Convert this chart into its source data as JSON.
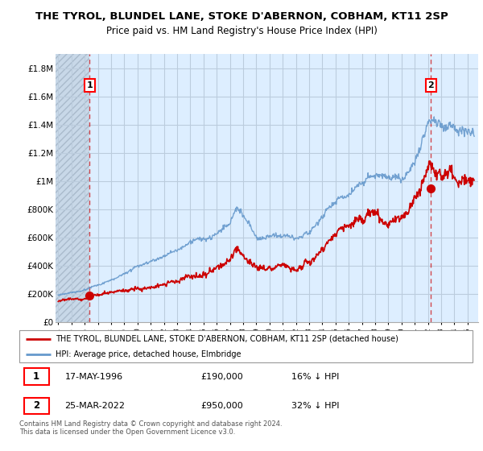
{
  "title": "THE TYROL, BLUNDEL LANE, STOKE D'ABERNON, COBHAM, KT11 2SP",
  "subtitle": "Price paid vs. HM Land Registry's House Price Index (HPI)",
  "xlim": [
    1993.8,
    2025.8
  ],
  "ylim": [
    0,
    1900000
  ],
  "yticks": [
    0,
    200000,
    400000,
    600000,
    800000,
    1000000,
    1200000,
    1400000,
    1600000,
    1800000
  ],
  "ytick_labels": [
    "£0",
    "£200K",
    "£400K",
    "£600K",
    "£800K",
    "£1M",
    "£1.2M",
    "£1.4M",
    "£1.6M",
    "£1.8M"
  ],
  "xticks": [
    1994,
    1995,
    1996,
    1997,
    1998,
    1999,
    2000,
    2001,
    2002,
    2003,
    2004,
    2005,
    2006,
    2007,
    2008,
    2009,
    2010,
    2011,
    2012,
    2013,
    2014,
    2015,
    2016,
    2017,
    2018,
    2019,
    2020,
    2021,
    2022,
    2023,
    2024,
    2025
  ],
  "hpi_color": "#6699cc",
  "price_color": "#cc0000",
  "sale1_x": 1996.38,
  "sale1_y": 190000,
  "sale2_x": 2022.23,
  "sale2_y": 950000,
  "legend_line1": "THE TYROL, BLUNDEL LANE, STOKE D'ABERNON, COBHAM, KT11 2SP (detached house)",
  "legend_line2": "HPI: Average price, detached house, Elmbridge",
  "annotation1_label": "1",
  "annotation2_label": "2",
  "table_row1": [
    "1",
    "17-MAY-1996",
    "£190,000",
    "16% ↓ HPI"
  ],
  "table_row2": [
    "2",
    "25-MAR-2022",
    "£950,000",
    "32% ↓ HPI"
  ],
  "footer": "Contains HM Land Registry data © Crown copyright and database right 2024.\nThis data is licensed under the Open Government Licence v3.0.",
  "bg_color": "#ddeeff",
  "grid_color": "#bbccdd",
  "hatch_color": "#c8d8e8"
}
